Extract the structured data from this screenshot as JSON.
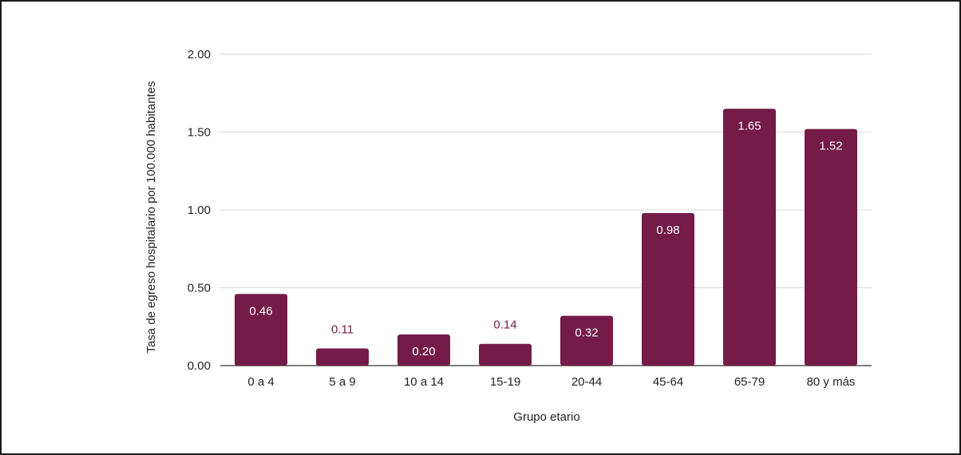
{
  "chart_data": {
    "type": "bar",
    "categories": [
      "0 a 4",
      "5 a 9",
      "10 a 14",
      "15-19",
      "20-44",
      "45-64",
      "65-79",
      "80 y más"
    ],
    "values": [
      0.46,
      0.11,
      0.2,
      0.14,
      0.32,
      0.98,
      1.65,
      1.52
    ],
    "data_labels": [
      "0.46",
      "0.11",
      "0.20",
      "0.14",
      "0.32",
      "0.98",
      "1.65",
      "1.52"
    ],
    "title": "",
    "xlabel": "Grupo etario",
    "ylabel": "Tasa de egreso hospitalario por 100.000 habitantes",
    "ylim": [
      0,
      2
    ],
    "yticks": [
      "0.00",
      "0.50",
      "1.00",
      "1.50",
      "2.00"
    ],
    "ytick_values": [
      0,
      0.5,
      1,
      1.5,
      2
    ],
    "grid": true,
    "legend": "none",
    "colors": {
      "bar": "#741b47",
      "label_inside": "#ffffff",
      "label_outside": "#741b47",
      "grid": "#d9d9d9",
      "text": "#222222"
    }
  }
}
